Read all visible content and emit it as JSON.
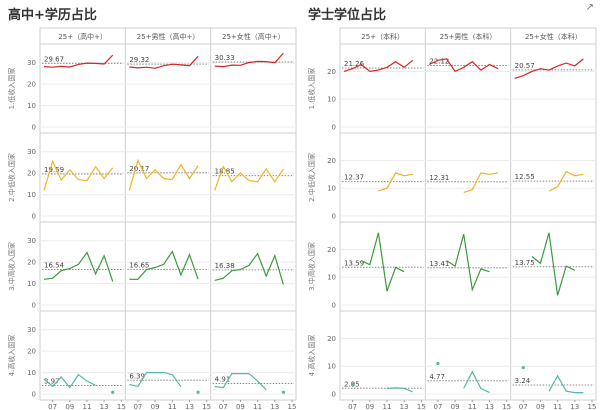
{
  "panels": [
    {
      "title": "高中+学历占比"
    },
    {
      "title": "学士学位占比"
    }
  ],
  "export_icon": "external-link-icon",
  "chart_data": [
    {
      "type": "line",
      "title": "高中+学历占比",
      "columns": [
        "25+（高中+）",
        "25+男性（高中+）",
        "25+女性（高中+）"
      ],
      "rows": [
        "1.低收入国家",
        "2.中低收入国家",
        "3.中高收入国家",
        "4.高收入国家"
      ],
      "x_ticks": [
        "07",
        "09",
        "11",
        "13",
        "15"
      ],
      "xlim": [
        2006,
        2015
      ],
      "y_ticks": [
        0,
        10,
        20,
        30
      ],
      "ylim": [
        0,
        35
      ],
      "grid": true,
      "row_colors": [
        "#d62728",
        "#f0b323",
        "#3c9a3c",
        "#58b5ac"
      ],
      "cells": [
        [
          {
            "avg": "29.67",
            "series": [
              [
                2006,
                28.2
              ],
              [
                2007,
                27.9
              ],
              [
                2008,
                28.3
              ],
              [
                2009,
                28.0
              ],
              [
                2010,
                29.2
              ],
              [
                2011,
                29.8
              ],
              [
                2012,
                29.7
              ],
              [
                2013,
                29.4
              ],
              [
                2014,
                33.5
              ]
            ]
          },
          {
            "avg": "29.32",
            "series": [
              [
                2006,
                28.0
              ],
              [
                2007,
                27.6
              ],
              [
                2008,
                27.9
              ],
              [
                2009,
                27.4
              ],
              [
                2010,
                28.6
              ],
              [
                2011,
                29.3
              ],
              [
                2012,
                29.0
              ],
              [
                2013,
                28.6
              ],
              [
                2014,
                33.0
              ]
            ]
          },
          {
            "avg": "30.33",
            "series": [
              [
                2006,
                28.4
              ],
              [
                2007,
                28.2
              ],
              [
                2008,
                28.9
              ],
              [
                2009,
                28.8
              ],
              [
                2010,
                30.1
              ],
              [
                2011,
                30.6
              ],
              [
                2012,
                30.5
              ],
              [
                2013,
                30.0
              ],
              [
                2014,
                34.5
              ]
            ]
          }
        ],
        [
          {
            "avg": "19.59",
            "series": [
              [
                2006,
                12.0
              ],
              [
                2007,
                25.5
              ],
              [
                2008,
                16.8
              ],
              [
                2009,
                21.5
              ],
              [
                2010,
                17.0
              ],
              [
                2011,
                16.5
              ],
              [
                2012,
                23.0
              ],
              [
                2013,
                17.5
              ],
              [
                2014,
                22.5
              ]
            ]
          },
          {
            "avg": "20.17",
            "series": [
              [
                2006,
                12.0
              ],
              [
                2007,
                26.0
              ],
              [
                2008,
                17.5
              ],
              [
                2009,
                21.5
              ],
              [
                2010,
                17.5
              ],
              [
                2011,
                17.0
              ],
              [
                2012,
                24.0
              ],
              [
                2013,
                17.5
              ],
              [
                2014,
                23.5
              ]
            ]
          },
          {
            "avg": "18.85",
            "series": [
              [
                2006,
                12.0
              ],
              [
                2007,
                23.0
              ],
              [
                2008,
                16.0
              ],
              [
                2009,
                20.0
              ],
              [
                2010,
                16.5
              ],
              [
                2011,
                16.0
              ],
              [
                2012,
                22.0
              ],
              [
                2013,
                16.0
              ],
              [
                2014,
                22.0
              ]
            ]
          }
        ],
        [
          {
            "avg": "16.54",
            "series": [
              [
                2006,
                12.0
              ],
              [
                2007,
                12.5
              ],
              [
                2008,
                16.0
              ],
              [
                2009,
                17.0
              ],
              [
                2010,
                19.0
              ],
              [
                2011,
                24.5
              ],
              [
                2012,
                14.5
              ],
              [
                2013,
                23.0
              ],
              [
                2014,
                11.0
              ]
            ]
          },
          {
            "avg": "16.65",
            "series": [
              [
                2006,
                12.0
              ],
              [
                2007,
                12.0
              ],
              [
                2008,
                16.5
              ],
              [
                2009,
                17.5
              ],
              [
                2010,
                19.0
              ],
              [
                2011,
                25.0
              ],
              [
                2012,
                14.0
              ],
              [
                2013,
                23.5
              ],
              [
                2014,
                12.0
              ]
            ]
          },
          {
            "avg": "16.38",
            "series": [
              [
                2006,
                11.5
              ],
              [
                2007,
                12.5
              ],
              [
                2008,
                16.0
              ],
              [
                2009,
                16.5
              ],
              [
                2010,
                18.5
              ],
              [
                2011,
                24.0
              ],
              [
                2012,
                13.5
              ],
              [
                2013,
                23.0
              ],
              [
                2014,
                9.5
              ]
            ]
          }
        ],
        [
          {
            "avg": "3.97",
            "series": [
              [
                2006,
                7.0
              ],
              [
                2007,
                3.5
              ],
              [
                2008,
                8.0
              ],
              [
                2009,
                3.0
              ],
              [
                2010,
                9.0
              ],
              [
                2011,
                6.0
              ],
              [
                2012,
                4.0
              ]
            ],
            "dots": [
              [
                2014,
                0.8
              ]
            ]
          },
          {
            "avg": "6.39",
            "series": [
              [
                2006,
                4.5
              ],
              [
                2007,
                3.5
              ],
              [
                2008,
                10.0
              ],
              [
                2009,
                10.0
              ],
              [
                2010,
                10.0
              ],
              [
                2011,
                9.0
              ],
              [
                2012,
                3.5
              ]
            ],
            "dots": [
              [
                2014,
                0.8
              ]
            ]
          },
          {
            "avg": "4.91",
            "series": [
              [
                2006,
                3.5
              ],
              [
                2007,
                3.0
              ],
              [
                2008,
                9.5
              ],
              [
                2009,
                9.5
              ],
              [
                2010,
                9.5
              ],
              [
                2011,
                6.0
              ],
              [
                2012,
                2.0
              ]
            ],
            "dots": [
              [
                2014,
                0.8
              ]
            ]
          }
        ]
      ]
    },
    {
      "type": "line",
      "title": "学士学位占比",
      "columns": [
        "25+（本科）",
        "25+男性（本科）",
        "25+女性（本科）"
      ],
      "rows": [
        "1.低收入国家",
        "2.中低收入国家",
        "3.中高收入国家",
        "4.高收入国家"
      ],
      "x_ticks": [
        "07",
        "09",
        "11",
        "13",
        "15"
      ],
      "xlim": [
        2006,
        2015
      ],
      "y_ticks": [
        0,
        10,
        20
      ],
      "ylim": [
        0,
        27
      ],
      "grid": true,
      "row_colors": [
        "#d62728",
        "#f0b323",
        "#3c9a3c",
        "#58b5ac"
      ],
      "cells": [
        [
          {
            "avg": "21.26",
            "series": [
              [
                2006,
                20.0
              ],
              [
                2007,
                21.0
              ],
              [
                2008,
                22.5
              ],
              [
                2009,
                20.0
              ],
              [
                2010,
                20.5
              ],
              [
                2011,
                21.5
              ],
              [
                2012,
                23.5
              ],
              [
                2013,
                21.5
              ],
              [
                2014,
                24.0
              ]
            ]
          },
          {
            "avg": "22.12",
            "series": [
              [
                2006,
                22.5
              ],
              [
                2007,
                24.0
              ],
              [
                2008,
                24.5
              ],
              [
                2009,
                20.0
              ],
              [
                2010,
                21.5
              ],
              [
                2011,
                23.5
              ],
              [
                2012,
                20.5
              ],
              [
                2013,
                22.5
              ],
              [
                2014,
                21.0
              ]
            ]
          },
          {
            "avg": "20.57",
            "series": [
              [
                2006,
                17.5
              ],
              [
                2007,
                18.5
              ],
              [
                2008,
                20.0
              ],
              [
                2009,
                21.0
              ],
              [
                2010,
                20.5
              ],
              [
                2011,
                22.0
              ],
              [
                2012,
                23.0
              ],
              [
                2013,
                22.0
              ],
              [
                2014,
                24.5
              ]
            ]
          }
        ],
        [
          {
            "avg": "12.37",
            "series": [
              [
                2010,
                9.0
              ],
              [
                2011,
                10.0
              ],
              [
                2012,
                15.5
              ],
              [
                2013,
                14.5
              ],
              [
                2014,
                15.0
              ]
            ]
          },
          {
            "avg": "12.31",
            "series": [
              [
                2010,
                8.5
              ],
              [
                2011,
                9.5
              ],
              [
                2012,
                15.5
              ],
              [
                2013,
                15.0
              ],
              [
                2014,
                15.5
              ]
            ]
          },
          {
            "avg": "12.55",
            "series": [
              [
                2010,
                9.0
              ],
              [
                2011,
                10.5
              ],
              [
                2012,
                16.0
              ],
              [
                2013,
                14.5
              ],
              [
                2014,
                15.0
              ]
            ]
          }
        ],
        [
          {
            "avg": "13.59",
            "series": [
              [
                2008,
                16.0
              ],
              [
                2009,
                14.5
              ],
              [
                2010,
                26.0
              ],
              [
                2011,
                5.0
              ],
              [
                2012,
                13.5
              ],
              [
                2013,
                12.0
              ]
            ]
          },
          {
            "avg": "13.41",
            "series": [
              [
                2008,
                16.0
              ],
              [
                2009,
                14.0
              ],
              [
                2010,
                25.5
              ],
              [
                2011,
                5.5
              ],
              [
                2012,
                13.0
              ],
              [
                2013,
                12.0
              ]
            ]
          },
          {
            "avg": "13.75",
            "series": [
              [
                2008,
                17.5
              ],
              [
                2009,
                15.0
              ],
              [
                2010,
                26.0
              ],
              [
                2011,
                3.5
              ],
              [
                2012,
                14.0
              ],
              [
                2013,
                12.5
              ]
            ]
          }
        ],
        [
          {
            "avg": "2.05",
            "series": [
              [
                2011,
                2.0
              ],
              [
                2012,
                2.2
              ],
              [
                2013,
                2.0
              ],
              [
                2014,
                0.8
              ]
            ],
            "dots": [
              [
                2007,
                3.5
              ]
            ]
          },
          {
            "avg": "4.77",
            "series": [
              [
                2010,
                2.0
              ],
              [
                2011,
                8.0
              ],
              [
                2012,
                2.0
              ],
              [
                2013,
                0.5
              ]
            ],
            "dots": [
              [
                2007,
                11.0
              ]
            ]
          },
          {
            "avg": "3.24",
            "series": [
              [
                2010,
                1.0
              ],
              [
                2011,
                6.5
              ],
              [
                2012,
                1.0
              ],
              [
                2013,
                0.5
              ],
              [
                2014,
                0.5
              ]
            ],
            "dots": [
              [
                2007,
                9.5
              ]
            ]
          }
        ]
      ]
    }
  ]
}
